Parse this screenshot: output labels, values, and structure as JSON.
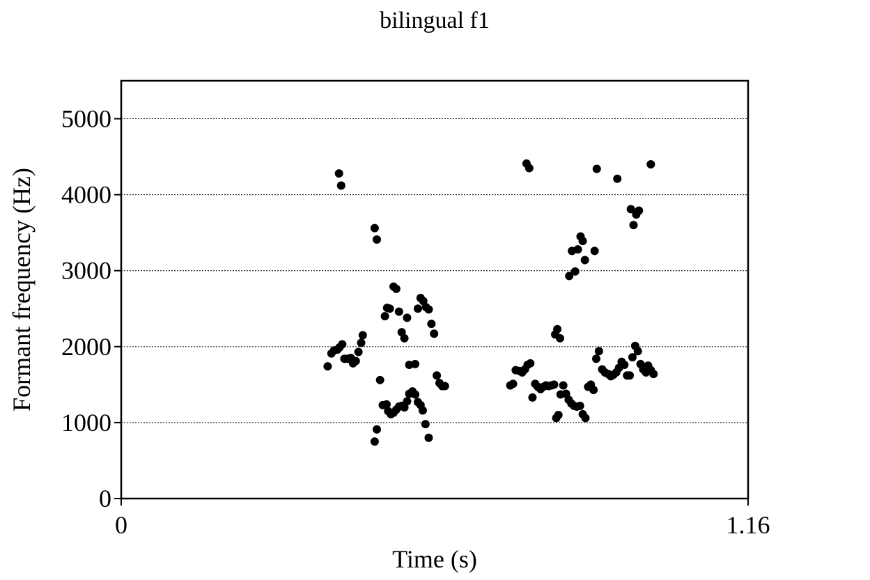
{
  "chart_data": {
    "type": "scatter",
    "title": "bilingual f1",
    "xlabel": "Time (s)",
    "ylabel": "Formant frequency (Hz)",
    "xlim": [
      0,
      1.16
    ],
    "ylim": [
      0,
      5500
    ],
    "x_ticks": [
      0,
      1.16
    ],
    "x_tick_labels": [
      "0",
      "1.16"
    ],
    "y_ticks": [
      0,
      1000,
      2000,
      3000,
      4000,
      5000
    ],
    "y_tick_labels": [
      "0",
      "1000",
      "2000",
      "3000",
      "4000",
      "5000"
    ],
    "grid": "horizontal dotted at y ticks",
    "marker_color": "#000000",
    "points": [
      [
        0.382,
        1740
      ],
      [
        0.389,
        1910
      ],
      [
        0.394,
        1950
      ],
      [
        0.4,
        1960
      ],
      [
        0.404,
        1990
      ],
      [
        0.409,
        2030
      ],
      [
        0.413,
        1840
      ],
      [
        0.419,
        1840
      ],
      [
        0.425,
        1850
      ],
      [
        0.429,
        1780
      ],
      [
        0.434,
        1810
      ],
      [
        0.439,
        1930
      ],
      [
        0.444,
        2050
      ],
      [
        0.447,
        2150
      ],
      [
        0.403,
        4280
      ],
      [
        0.407,
        4120
      ],
      [
        0.469,
        3560
      ],
      [
        0.473,
        3410
      ],
      [
        0.469,
        750
      ],
      [
        0.473,
        910
      ],
      [
        0.479,
        1560
      ],
      [
        0.484,
        1230
      ],
      [
        0.491,
        1240
      ],
      [
        0.494,
        1150
      ],
      [
        0.499,
        1110
      ],
      [
        0.504,
        1130
      ],
      [
        0.509,
        1170
      ],
      [
        0.514,
        1210
      ],
      [
        0.519,
        1220
      ],
      [
        0.524,
        1200
      ],
      [
        0.529,
        1280
      ],
      [
        0.533,
        1380
      ],
      [
        0.539,
        1410
      ],
      [
        0.544,
        1370
      ],
      [
        0.549,
        1270
      ],
      [
        0.554,
        1230
      ],
      [
        0.558,
        1160
      ],
      [
        0.563,
        980
      ],
      [
        0.569,
        800
      ],
      [
        0.488,
        2400
      ],
      [
        0.492,
        2510
      ],
      [
        0.497,
        2500
      ],
      [
        0.504,
        2790
      ],
      [
        0.509,
        2760
      ],
      [
        0.514,
        2460
      ],
      [
        0.519,
        2190
      ],
      [
        0.524,
        2110
      ],
      [
        0.529,
        2380
      ],
      [
        0.533,
        1760
      ],
      [
        0.544,
        1770
      ],
      [
        0.549,
        2500
      ],
      [
        0.554,
        2640
      ],
      [
        0.559,
        2600
      ],
      [
        0.564,
        2520
      ],
      [
        0.569,
        2490
      ],
      [
        0.574,
        2300
      ],
      [
        0.579,
        2170
      ],
      [
        0.584,
        1620
      ],
      [
        0.589,
        1520
      ],
      [
        0.594,
        1480
      ],
      [
        0.599,
        1480
      ],
      [
        0.72,
        1490
      ],
      [
        0.725,
        1510
      ],
      [
        0.73,
        1690
      ],
      [
        0.737,
        1680
      ],
      [
        0.742,
        1660
      ],
      [
        0.747,
        1700
      ],
      [
        0.752,
        1760
      ],
      [
        0.757,
        1780
      ],
      [
        0.761,
        1330
      ],
      [
        0.766,
        1510
      ],
      [
        0.771,
        1470
      ],
      [
        0.776,
        1440
      ],
      [
        0.781,
        1470
      ],
      [
        0.786,
        1490
      ],
      [
        0.791,
        1480
      ],
      [
        0.796,
        1490
      ],
      [
        0.801,
        1500
      ],
      [
        0.75,
        4410
      ],
      [
        0.755,
        4350
      ],
      [
        0.803,
        2160
      ],
      [
        0.807,
        2230
      ],
      [
        0.812,
        2110
      ],
      [
        0.805,
        1060
      ],
      [
        0.809,
        1100
      ],
      [
        0.813,
        1370
      ],
      [
        0.818,
        1490
      ],
      [
        0.823,
        1380
      ],
      [
        0.828,
        1300
      ],
      [
        0.833,
        1250
      ],
      [
        0.838,
        1220
      ],
      [
        0.843,
        1210
      ],
      [
        0.849,
        1220
      ],
      [
        0.854,
        1110
      ],
      [
        0.859,
        1060
      ],
      [
        0.85,
        3450
      ],
      [
        0.854,
        3390
      ],
      [
        0.858,
        3140
      ],
      [
        0.834,
        3260
      ],
      [
        0.84,
        2990
      ],
      [
        0.845,
        3280
      ],
      [
        0.829,
        2930
      ],
      [
        0.864,
        1470
      ],
      [
        0.869,
        1500
      ],
      [
        0.874,
        1430
      ],
      [
        0.879,
        1840
      ],
      [
        0.884,
        1940
      ],
      [
        0.89,
        1700
      ],
      [
        0.895,
        1660
      ],
      [
        0.901,
        1640
      ],
      [
        0.906,
        1610
      ],
      [
        0.911,
        1630
      ],
      [
        0.916,
        1660
      ],
      [
        0.921,
        1720
      ],
      [
        0.926,
        1800
      ],
      [
        0.931,
        1760
      ],
      [
        0.936,
        1620
      ],
      [
        0.941,
        1620
      ],
      [
        0.946,
        1860
      ],
      [
        0.951,
        2010
      ],
      [
        0.956,
        1940
      ],
      [
        0.961,
        1770
      ],
      [
        0.966,
        1700
      ],
      [
        0.971,
        1660
      ],
      [
        0.975,
        1750
      ],
      [
        0.98,
        1690
      ],
      [
        0.985,
        1640
      ],
      [
        0.876,
        3260
      ],
      [
        0.88,
        4340
      ],
      [
        0.918,
        4210
      ],
      [
        0.943,
        3810
      ],
      [
        0.948,
        3600
      ],
      [
        0.953,
        3740
      ],
      [
        0.958,
        3790
      ],
      [
        0.98,
        4400
      ]
    ]
  }
}
